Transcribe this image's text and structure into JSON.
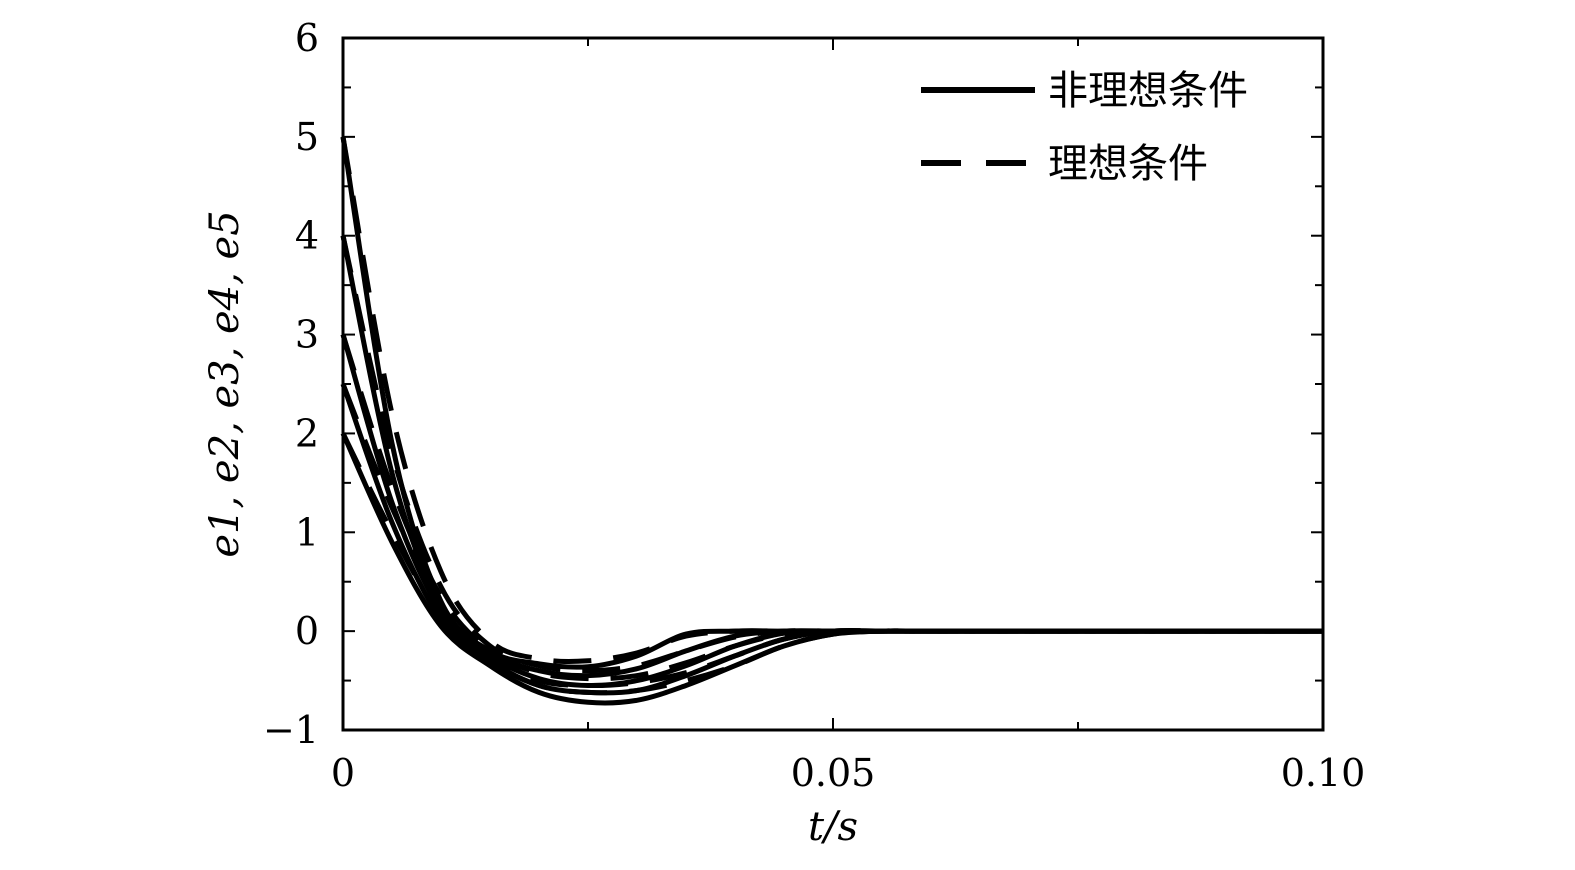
{
  "chart_data": {
    "type": "line",
    "xlabel": "t/s",
    "ylabel": "e1, e2, e3, e4, e5",
    "xlim": [
      0,
      0.1
    ],
    "ylim": [
      -1,
      6
    ],
    "x_ticks": [
      0,
      0.05,
      0.1
    ],
    "x_tick_labels": [
      "0",
      "0.05",
      "0.10"
    ],
    "y_ticks": [
      -1,
      0,
      1,
      2,
      3,
      4,
      5,
      6
    ],
    "y_tick_labels": [
      "−1",
      "0",
      "1",
      "2",
      "3",
      "4",
      "5",
      "6"
    ],
    "grid": false,
    "legend_position": "top-right",
    "legend": [
      {
        "label": "非理想条件",
        "style": "solid"
      },
      {
        "label": "理想条件",
        "style": "dashed"
      }
    ],
    "line_color": "#000000",
    "series": [
      {
        "group": "非理想条件",
        "style": "solid",
        "x": [
          0,
          0.005,
          0.01,
          0.015,
          0.02,
          0.025,
          0.03,
          0.035,
          0.04,
          0.045,
          0.05,
          0.055,
          0.06,
          0.08,
          0.1
        ],
        "y": [
          5,
          1.9,
          0.3,
          -0.2,
          -0.33,
          -0.36,
          -0.25,
          -0.03,
          0,
          0,
          0,
          0,
          0,
          0,
          0
        ]
      },
      {
        "group": "非理想条件",
        "style": "solid",
        "x": [
          0,
          0.005,
          0.01,
          0.015,
          0.02,
          0.025,
          0.03,
          0.035,
          0.04,
          0.045,
          0.05,
          0.055,
          0.06,
          0.08,
          0.1
        ],
        "y": [
          4,
          1.6,
          0.25,
          -0.22,
          -0.4,
          -0.45,
          -0.38,
          -0.2,
          -0.05,
          0,
          0,
          0,
          0,
          0,
          0
        ]
      },
      {
        "group": "非理想条件",
        "style": "solid",
        "x": [
          0,
          0.005,
          0.01,
          0.015,
          0.02,
          0.025,
          0.03,
          0.035,
          0.04,
          0.045,
          0.05,
          0.055,
          0.06,
          0.08,
          0.1
        ],
        "y": [
          3,
          1.3,
          0.2,
          -0.25,
          -0.48,
          -0.55,
          -0.5,
          -0.35,
          -0.15,
          -0.02,
          0,
          0,
          0,
          0,
          0
        ]
      },
      {
        "group": "非理想条件",
        "style": "solid",
        "x": [
          0,
          0.005,
          0.01,
          0.015,
          0.02,
          0.025,
          0.03,
          0.035,
          0.04,
          0.045,
          0.05,
          0.055,
          0.06,
          0.08,
          0.1
        ],
        "y": [
          2.5,
          1.1,
          0.12,
          -0.3,
          -0.55,
          -0.62,
          -0.6,
          -0.45,
          -0.25,
          -0.08,
          0,
          0,
          0,
          0,
          0
        ]
      },
      {
        "group": "非理想条件",
        "style": "solid",
        "x": [
          0,
          0.005,
          0.01,
          0.015,
          0.02,
          0.025,
          0.03,
          0.035,
          0.04,
          0.045,
          0.05,
          0.055,
          0.06,
          0.08,
          0.1
        ],
        "y": [
          2,
          0.9,
          0.05,
          -0.35,
          -0.62,
          -0.72,
          -0.7,
          -0.55,
          -0.35,
          -0.15,
          -0.03,
          0,
          0,
          0,
          0
        ]
      },
      {
        "group": "理想条件",
        "style": "dashed",
        "x": [
          0,
          0.005,
          0.01,
          0.015,
          0.02,
          0.025,
          0.03,
          0.035,
          0.04,
          0.045,
          0.05,
          0.055,
          0.06,
          0.08,
          0.1
        ],
        "y": [
          5,
          2.2,
          0.6,
          -0.1,
          -0.28,
          -0.3,
          -0.22,
          -0.05,
          0,
          0,
          0,
          0,
          0,
          0,
          0
        ]
      },
      {
        "group": "理想条件",
        "style": "dashed",
        "x": [
          0,
          0.005,
          0.01,
          0.015,
          0.02,
          0.025,
          0.03,
          0.035,
          0.04,
          0.045,
          0.05,
          0.055,
          0.06,
          0.08,
          0.1
        ],
        "y": [
          4,
          1.8,
          0.45,
          -0.15,
          -0.35,
          -0.4,
          -0.35,
          -0.2,
          -0.06,
          0,
          0,
          0,
          0,
          0,
          0
        ]
      },
      {
        "group": "理想条件",
        "style": "dashed",
        "x": [
          0,
          0.005,
          0.01,
          0.015,
          0.02,
          0.025,
          0.03,
          0.035,
          0.04,
          0.045,
          0.05,
          0.055,
          0.06,
          0.08,
          0.1
        ],
        "y": [
          3,
          1.45,
          0.35,
          -0.2,
          -0.42,
          -0.48,
          -0.45,
          -0.32,
          -0.15,
          -0.03,
          0,
          0,
          0,
          0,
          0
        ]
      },
      {
        "group": "理想条件",
        "style": "dashed",
        "x": [
          0,
          0.005,
          0.01,
          0.015,
          0.02,
          0.025,
          0.03,
          0.035,
          0.04,
          0.045,
          0.05,
          0.055,
          0.06,
          0.08,
          0.1
        ],
        "y": [
          2.5,
          1.25,
          0.25,
          -0.25,
          -0.5,
          -0.55,
          -0.52,
          -0.42,
          -0.25,
          -0.08,
          0,
          0,
          0,
          0,
          0
        ]
      },
      {
        "group": "理想条件",
        "style": "dashed",
        "x": [
          0,
          0.005,
          0.01,
          0.015,
          0.02,
          0.025,
          0.03,
          0.035,
          0.04,
          0.045,
          0.05,
          0.055,
          0.06,
          0.08,
          0.1
        ],
        "y": [
          2,
          1.0,
          0.15,
          -0.3,
          -0.55,
          -0.62,
          -0.6,
          -0.5,
          -0.35,
          -0.15,
          -0.03,
          0,
          0,
          0,
          0
        ]
      }
    ]
  }
}
